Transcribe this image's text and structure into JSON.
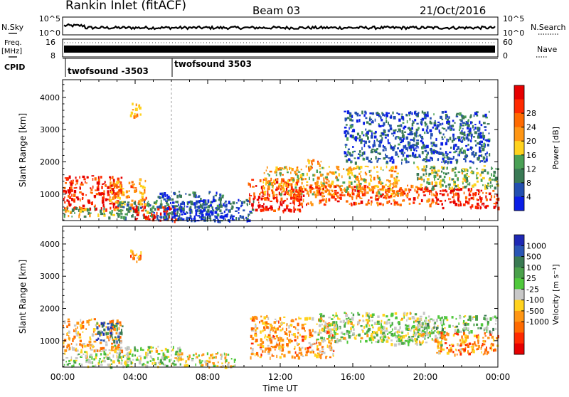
{
  "header": {
    "station": "Rankin Inlet (fitACF)",
    "beam": "Beam 03",
    "date": "21/Oct/2016"
  },
  "sky_panel": {
    "left_label": "N.Sky",
    "right_label": "N.Search",
    "left_ticks": [
      "10^5",
      "10^0"
    ],
    "right_ticks": [
      "10^5",
      "10^0"
    ]
  },
  "freq_panel": {
    "left_label_line1": "Freq.",
    "left_label_line2": "[MHz]",
    "right_label": "Nave",
    "left_ticks": [
      "16",
      "8"
    ],
    "right_ticks": [
      "60",
      "0"
    ]
  },
  "cpid_panel": {
    "label": "CPID",
    "entries": [
      "twofsound -3503",
      "twofsound 3503"
    ]
  },
  "x_axis": {
    "label": "Time UT",
    "ticks": [
      "00:00",
      "04:00",
      "08:00",
      "12:00",
      "16:00",
      "20:00",
      "00:00"
    ]
  },
  "colors": {
    "power": [
      "#0a1ee6",
      "#234fb0",
      "#3a7a55",
      "#4aa055",
      "#ffd21e",
      "#ff9614",
      "#ff6a00",
      "#ff2a00",
      "#e60000"
    ],
    "velocity": [
      "#1e28b4",
      "#2a55b4",
      "#3a7a52",
      "#4aa04a",
      "#50c83c",
      "#c8c8c8",
      "#ffd21e",
      "#ff9614",
      "#ff6a00",
      "#ff2a00",
      "#e60000"
    ]
  },
  "chart_data": [
    {
      "type": "heatmap",
      "title": "Power",
      "ylabel": "Slant Range [km]",
      "xlabel": "Time UT",
      "xlim": [
        0,
        24
      ],
      "ylim": [
        180,
        4550
      ],
      "y_ticks": [
        1000,
        2000,
        3000,
        4000
      ],
      "colorbar": {
        "label": "Power [dB]",
        "ticks": [
          "4",
          "8",
          "12",
          "16",
          "20",
          "24",
          "28"
        ],
        "range": [
          0,
          32
        ]
      },
      "regions": [
        {
          "x": [
            0.0,
            3.3
          ],
          "y": [
            550,
            1600
          ],
          "value": 28
        },
        {
          "x": [
            0.0,
            3.6
          ],
          "y": [
            300,
            600
          ],
          "value": 14
        },
        {
          "x": [
            2.5,
            4.6
          ],
          "y": [
            700,
            1500
          ],
          "value": 20
        },
        {
          "x": [
            3.0,
            5.2
          ],
          "y": [
            300,
            800
          ],
          "value": 10
        },
        {
          "x": [
            3.8,
            6.2
          ],
          "y": [
            200,
            650
          ],
          "value": 28
        },
        {
          "x": [
            5.0,
            8.8
          ],
          "y": [
            200,
            1100
          ],
          "value": 6
        },
        {
          "x": [
            6.0,
            10.5
          ],
          "y": [
            200,
            850
          ],
          "value": 5
        },
        {
          "x": [
            3.7,
            4.3
          ],
          "y": [
            3400,
            3900
          ],
          "value": 20
        },
        {
          "x": [
            10.2,
            13.2
          ],
          "y": [
            500,
            1500
          ],
          "value": 28
        },
        {
          "x": [
            11.0,
            18.5
          ],
          "y": [
            1000,
            1900
          ],
          "value": 18
        },
        {
          "x": [
            12.5,
            20.5
          ],
          "y": [
            700,
            1300
          ],
          "value": 24
        },
        {
          "x": [
            13.5,
            14.3
          ],
          "y": [
            1800,
            2100
          ],
          "value": 22
        },
        {
          "x": [
            20.5,
            24.0
          ],
          "y": [
            600,
            1200
          ],
          "value": 28
        },
        {
          "x": [
            19.5,
            24.0
          ],
          "y": [
            1200,
            1900
          ],
          "value": 13
        },
        {
          "x": [
            15.5,
            23.5
          ],
          "y": [
            2000,
            3600
          ],
          "value": 6
        }
      ]
    },
    {
      "type": "heatmap",
      "title": "Velocity",
      "ylabel": "Slant Range [km]",
      "xlabel": "Time UT",
      "xlim": [
        0,
        24
      ],
      "ylim": [
        180,
        4550
      ],
      "y_ticks": [
        1000,
        2000,
        3000,
        4000
      ],
      "colorbar": {
        "label": "Velocity [m s⁻¹]",
        "ticks": [
          "1000",
          "500",
          "100",
          "25",
          "-25",
          "-100",
          "-500",
          "-1000"
        ],
        "range": [
          -1200,
          1200
        ]
      },
      "regions": [
        {
          "x": [
            0.0,
            3.2
          ],
          "y": [
            700,
            1700
          ],
          "value": -300
        },
        {
          "x": [
            1.8,
            3.3
          ],
          "y": [
            1000,
            1600
          ],
          "value": 800
        },
        {
          "x": [
            0.0,
            3.8
          ],
          "y": [
            200,
            700
          ],
          "value": 80
        },
        {
          "x": [
            3.0,
            6.5
          ],
          "y": [
            200,
            850
          ],
          "value": 60
        },
        {
          "x": [
            6.0,
            9.5
          ],
          "y": [
            200,
            650
          ],
          "value": -100
        },
        {
          "x": [
            3.7,
            4.3
          ],
          "y": [
            3400,
            3900
          ],
          "value": -400
        },
        {
          "x": [
            10.3,
            15.0
          ],
          "y": [
            500,
            1800
          ],
          "value": -400
        },
        {
          "x": [
            14.0,
            20.0
          ],
          "y": [
            1000,
            1900
          ],
          "value": 60
        },
        {
          "x": [
            17.0,
            21.0
          ],
          "y": [
            900,
            1500
          ],
          "value": 0
        },
        {
          "x": [
            20.5,
            24.0
          ],
          "y": [
            600,
            1300
          ],
          "value": -500
        },
        {
          "x": [
            19.5,
            24.0
          ],
          "y": [
            1300,
            1800
          ],
          "value": 200
        }
      ]
    }
  ]
}
